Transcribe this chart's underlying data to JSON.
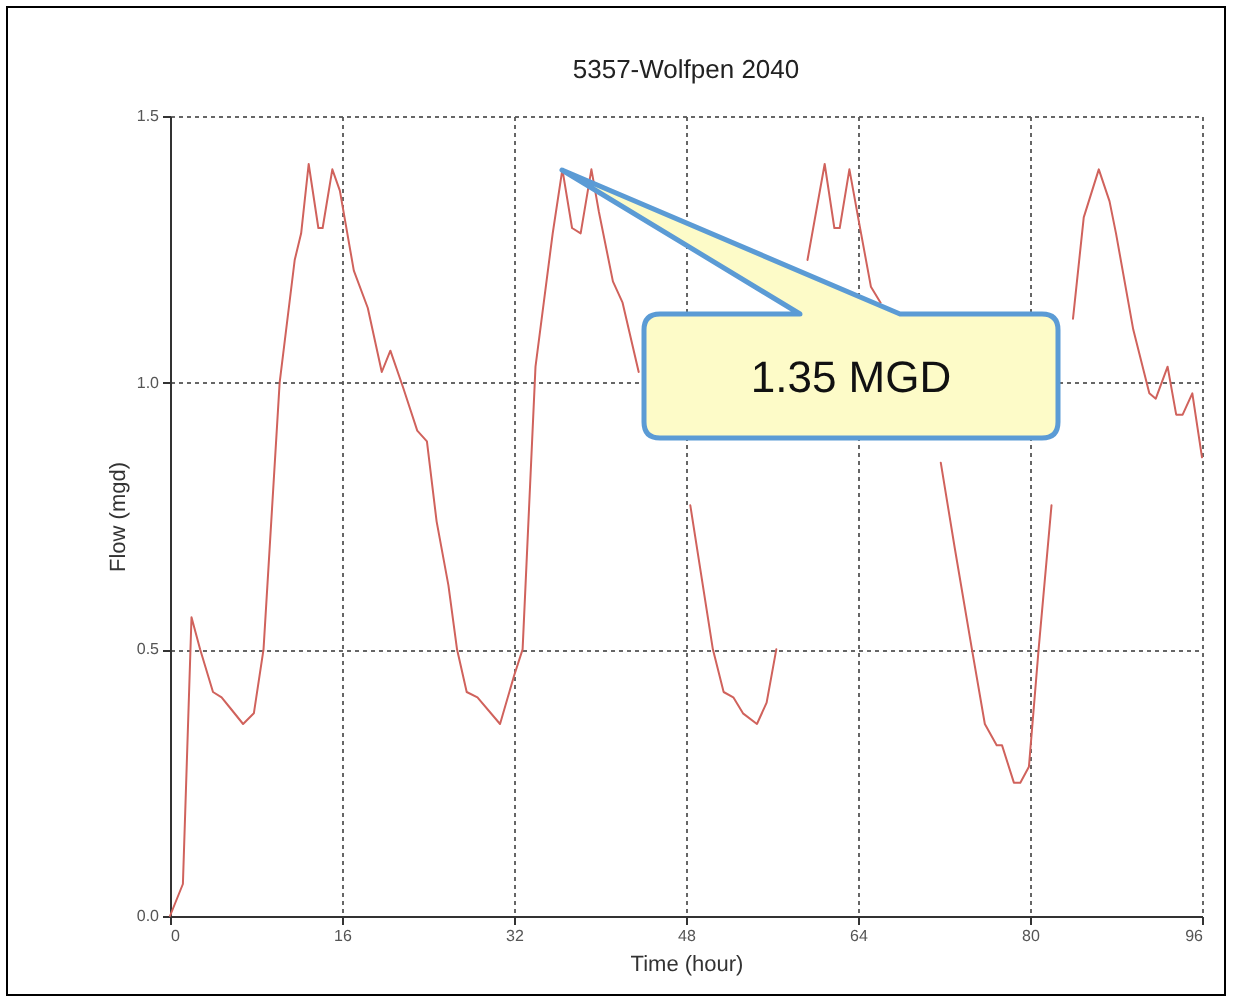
{
  "chart_data": {
    "type": "line",
    "title": "5357-Wolfpen 2040",
    "xlabel": "Time (hour)",
    "ylabel": "Flow (mgd)",
    "x": [
      0,
      1.2,
      2.0,
      2.8,
      4.0,
      4.8,
      5.6,
      6.8,
      7.8,
      8.7,
      10.2,
      11.6,
      12.2,
      12.9,
      13.8,
      14.2,
      15.1,
      15.8,
      17.1,
      18.4,
      19.7,
      20.5,
      21.7,
      23.0,
      23.9,
      24.8,
      25.9,
      26.7,
      27.6,
      28.6,
      30.7,
      32.0,
      32.8,
      34.0,
      35.6,
      36.5,
      37.4,
      38.2,
      39.2,
      39.9,
      41.2,
      42.1,
      43.6,
      46.0,
      48.4,
      50.5,
      51.5,
      52.4,
      53.3,
      54.6,
      55.5,
      56.4,
      58.0,
      59.3,
      60.9,
      61.8,
      62.3,
      63.2,
      64.1,
      65.2,
      66.1,
      67.0,
      69.0,
      71.7,
      73.0,
      74.6,
      75.8,
      76.9,
      77.4,
      78.5,
      79.1,
      79.9,
      80.8,
      82.0,
      83.0,
      84.0,
      85.0,
      86.4,
      87.4,
      88.0,
      89.6,
      91.1,
      91.7,
      92.8,
      93.6,
      94.2,
      95.1,
      96.0
    ],
    "series": [
      {
        "color": "#d0625c",
        "values": [
          0,
          0.06,
          0.56,
          0.5,
          0.42,
          0.41,
          0.39,
          0.36,
          0.38,
          0.5,
          1.0,
          1.23,
          1.28,
          1.41,
          1.29,
          1.29,
          1.4,
          1.36,
          1.21,
          1.14,
          1.02,
          1.06,
          0.99,
          0.91,
          0.89,
          0.74,
          0.62,
          0.5,
          0.42,
          0.41,
          0.36,
          0.45,
          0.5,
          1.03,
          1.28,
          1.4,
          1.29,
          1.28,
          1.4,
          1.32,
          1.19,
          1.15,
          1.02,
          null,
          0.77,
          0.5,
          0.42,
          0.41,
          0.38,
          0.36,
          0.4,
          0.5,
          null,
          1.23,
          1.41,
          1.29,
          1.29,
          1.4,
          1.3,
          1.18,
          1.15,
          null,
          null,
          0.85,
          0.69,
          0.5,
          0.36,
          0.32,
          0.32,
          0.25,
          0.25,
          0.28,
          0.5,
          0.77,
          null,
          1.12,
          1.31,
          1.4,
          1.34,
          1.28,
          1.1,
          0.98,
          0.97,
          1.03,
          0.94,
          0.94,
          0.98,
          0.86
        ]
      }
    ],
    "xlim": [
      0,
      96
    ],
    "xticks": [
      0,
      16,
      32,
      48,
      64,
      80,
      96
    ],
    "ylim": [
      0,
      1.5
    ],
    "yticks": [
      {
        "value": 0,
        "label": "0.0"
      },
      {
        "value": 0.5,
        "label": "0.5"
      },
      {
        "value": 1,
        "label": "1.0"
      },
      {
        "value": 1.5,
        "label": "1.5"
      }
    ],
    "grid": true,
    "annotations": [
      "1.35 MGD"
    ]
  }
}
